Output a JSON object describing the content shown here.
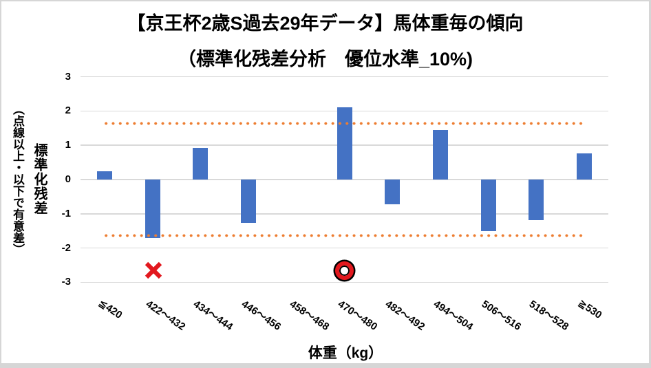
{
  "title": {
    "line1": "【京王杯2歳S過去29年データ】馬体重毎の傾向",
    "line2": "（標準化残差分析　優位水準_10%)"
  },
  "y_axis": {
    "title_main": "標準化残差",
    "title_sub": "（点線以上・以下で有意差）"
  },
  "x_axis": {
    "title": "体重（kg）"
  },
  "chart_data": {
    "type": "bar",
    "title": "【京王杯2歳S過去29年データ】馬体重毎の傾向（標準化残差分析　優位水準_10%)",
    "categories": [
      "≦420",
      "422～432",
      "434～444",
      "446～456",
      "458～468",
      "470～480",
      "482～492",
      "494～504",
      "506～516",
      "518～528",
      "≧530"
    ],
    "values": [
      0.25,
      -1.7,
      0.93,
      -1.27,
      0,
      2.1,
      -0.73,
      1.45,
      -1.5,
      -1.18,
      0.76
    ],
    "xlabel": "体重（kg）",
    "ylabel": "標準化残差（点線以上・以下で有意差）",
    "ylim": [
      -3,
      3
    ],
    "yticks": [
      3,
      2,
      1,
      0,
      -1,
      -2,
      -3
    ],
    "grid": true,
    "legend": "none",
    "bar_color": "#4472C4",
    "gridline_color": "#D9D9D9",
    "significance_lines": {
      "values": [
        1.645,
        -1.645
      ],
      "color": "#ED7D31",
      "style": "dotted"
    },
    "annotations": [
      {
        "type": "x-mark",
        "symbol": "×",
        "category": "422～432",
        "category_index": 1,
        "value": -2.65,
        "color": "#E2181E"
      },
      {
        "type": "double-circle",
        "symbol": "◎",
        "category": "470～480",
        "category_index": 5,
        "value": -2.65,
        "color": "#E2181E"
      }
    ]
  }
}
